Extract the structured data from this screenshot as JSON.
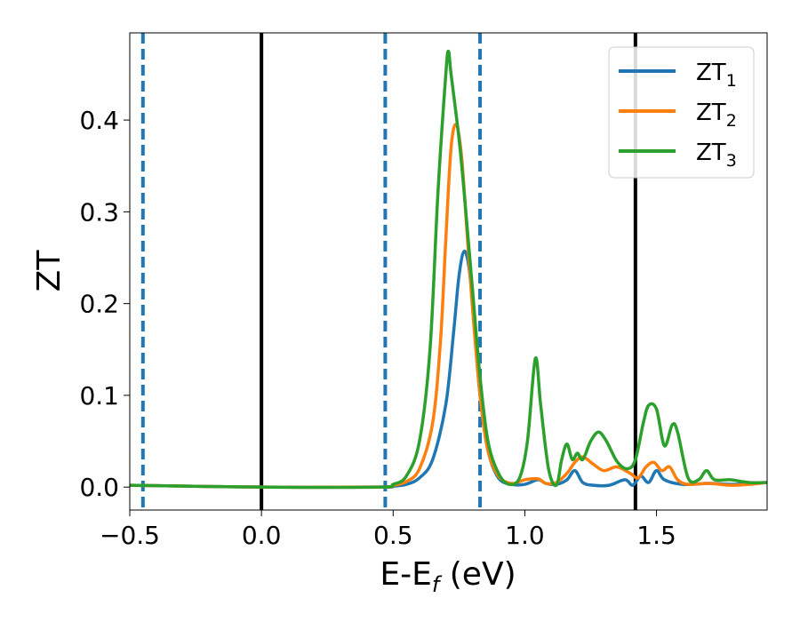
{
  "chart_data": {
    "type": "line",
    "title": "",
    "xlabel": "E-E",
    "xlabel_sub": "f",
    "xlabel_unit": " (eV)",
    "ylabel": "ZT",
    "xlim": [
      -0.5,
      1.92
    ],
    "ylim": [
      -0.025,
      0.495
    ],
    "x_ticks": [
      -0.5,
      0.0,
      0.5,
      1.0,
      1.5
    ],
    "x_tick_labels": [
      "−0.5",
      "0.0",
      "0.5",
      "1.0",
      "1.5"
    ],
    "y_ticks": [
      0.0,
      0.1,
      0.2,
      0.3,
      0.4
    ],
    "y_tick_labels": [
      "0.0",
      "0.1",
      "0.2",
      "0.3",
      "0.4"
    ],
    "grid": false,
    "legend_position": "top-right",
    "vertical_lines": [
      {
        "x": -0.45,
        "style": "dashed",
        "color": "#1f77b4"
      },
      {
        "x": 0.0,
        "style": "solid",
        "color": "#000000"
      },
      {
        "x": 0.47,
        "style": "dashed",
        "color": "#1f77b4"
      },
      {
        "x": 0.83,
        "style": "dashed",
        "color": "#1f77b4"
      },
      {
        "x": 1.42,
        "style": "solid",
        "color": "#000000"
      }
    ],
    "series": [
      {
        "name": "ZT",
        "subscript": "1",
        "color": "#1f77b4",
        "points": [
          [
            -0.5,
            0.002
          ],
          [
            0.0,
            0.0
          ],
          [
            0.45,
            0.0
          ],
          [
            0.5,
            0.001
          ],
          [
            0.55,
            0.003
          ],
          [
            0.6,
            0.01
          ],
          [
            0.65,
            0.03
          ],
          [
            0.7,
            0.09
          ],
          [
            0.73,
            0.17
          ],
          [
            0.75,
            0.23
          ],
          [
            0.77,
            0.257
          ],
          [
            0.79,
            0.235
          ],
          [
            0.81,
            0.17
          ],
          [
            0.83,
            0.1
          ],
          [
            0.86,
            0.04
          ],
          [
            0.9,
            0.01
          ],
          [
            0.95,
            0.003
          ],
          [
            1.0,
            0.003
          ],
          [
            1.05,
            0.008
          ],
          [
            1.08,
            0.004
          ],
          [
            1.12,
            0.003
          ],
          [
            1.16,
            0.008
          ],
          [
            1.19,
            0.018
          ],
          [
            1.22,
            0.005
          ],
          [
            1.26,
            0.002
          ],
          [
            1.32,
            0.002
          ],
          [
            1.38,
            0.008
          ],
          [
            1.41,
            0.002
          ],
          [
            1.44,
            0.012
          ],
          [
            1.47,
            0.005
          ],
          [
            1.5,
            0.018
          ],
          [
            1.53,
            0.008
          ],
          [
            1.6,
            0.003
          ],
          [
            1.7,
            0.004
          ],
          [
            1.8,
            0.003
          ],
          [
            1.92,
            0.005
          ]
        ]
      },
      {
        "name": "ZT",
        "subscript": "2",
        "color": "#ff7f0e",
        "points": [
          [
            -0.5,
            0.002
          ],
          [
            0.0,
            0.0
          ],
          [
            0.45,
            0.0
          ],
          [
            0.5,
            0.002
          ],
          [
            0.55,
            0.006
          ],
          [
            0.6,
            0.02
          ],
          [
            0.65,
            0.07
          ],
          [
            0.68,
            0.16
          ],
          [
            0.7,
            0.27
          ],
          [
            0.72,
            0.37
          ],
          [
            0.74,
            0.395
          ],
          [
            0.76,
            0.36
          ],
          [
            0.78,
            0.28
          ],
          [
            0.8,
            0.2
          ],
          [
            0.83,
            0.1
          ],
          [
            0.86,
            0.04
          ],
          [
            0.9,
            0.012
          ],
          [
            0.95,
            0.004
          ],
          [
            1.0,
            0.008
          ],
          [
            1.05,
            0.009
          ],
          [
            1.08,
            0.004
          ],
          [
            1.12,
            0.005
          ],
          [
            1.16,
            0.015
          ],
          [
            1.19,
            0.027
          ],
          [
            1.22,
            0.033
          ],
          [
            1.26,
            0.025
          ],
          [
            1.3,
            0.018
          ],
          [
            1.35,
            0.022
          ],
          [
            1.4,
            0.015
          ],
          [
            1.43,
            0.01
          ],
          [
            1.46,
            0.022
          ],
          [
            1.49,
            0.027
          ],
          [
            1.52,
            0.018
          ],
          [
            1.55,
            0.022
          ],
          [
            1.58,
            0.008
          ],
          [
            1.62,
            0.003
          ],
          [
            1.7,
            0.004
          ],
          [
            1.78,
            0.002
          ],
          [
            1.85,
            0.003
          ],
          [
            1.92,
            0.005
          ]
        ]
      },
      {
        "name": "ZT",
        "subscript": "3",
        "color": "#2ca02c",
        "points": [
          [
            -0.5,
            0.002
          ],
          [
            0.0,
            0.0
          ],
          [
            0.45,
            0.0
          ],
          [
            0.5,
            0.003
          ],
          [
            0.55,
            0.012
          ],
          [
            0.6,
            0.05
          ],
          [
            0.64,
            0.15
          ],
          [
            0.67,
            0.32
          ],
          [
            0.7,
            0.45
          ],
          [
            0.71,
            0.475
          ],
          [
            0.72,
            0.45
          ],
          [
            0.75,
            0.38
          ],
          [
            0.77,
            0.32
          ],
          [
            0.8,
            0.22
          ],
          [
            0.83,
            0.12
          ],
          [
            0.86,
            0.05
          ],
          [
            0.9,
            0.015
          ],
          [
            0.94,
            0.003
          ],
          [
            0.98,
            0.01
          ],
          [
            1.01,
            0.05
          ],
          [
            1.04,
            0.14
          ],
          [
            1.06,
            0.09
          ],
          [
            1.09,
            0.02
          ],
          [
            1.12,
            0.002
          ],
          [
            1.14,
            0.03
          ],
          [
            1.16,
            0.047
          ],
          [
            1.18,
            0.03
          ],
          [
            1.2,
            0.037
          ],
          [
            1.22,
            0.03
          ],
          [
            1.25,
            0.05
          ],
          [
            1.28,
            0.06
          ],
          [
            1.31,
            0.05
          ],
          [
            1.35,
            0.028
          ],
          [
            1.39,
            0.02
          ],
          [
            1.42,
            0.03
          ],
          [
            1.45,
            0.07
          ],
          [
            1.47,
            0.089
          ],
          [
            1.5,
            0.085
          ],
          [
            1.53,
            0.045
          ],
          [
            1.56,
            0.068
          ],
          [
            1.58,
            0.06
          ],
          [
            1.62,
            0.01
          ],
          [
            1.66,
            0.008
          ],
          [
            1.69,
            0.018
          ],
          [
            1.72,
            0.008
          ],
          [
            1.78,
            0.008
          ],
          [
            1.85,
            0.005
          ],
          [
            1.92,
            0.005
          ]
        ]
      }
    ]
  }
}
